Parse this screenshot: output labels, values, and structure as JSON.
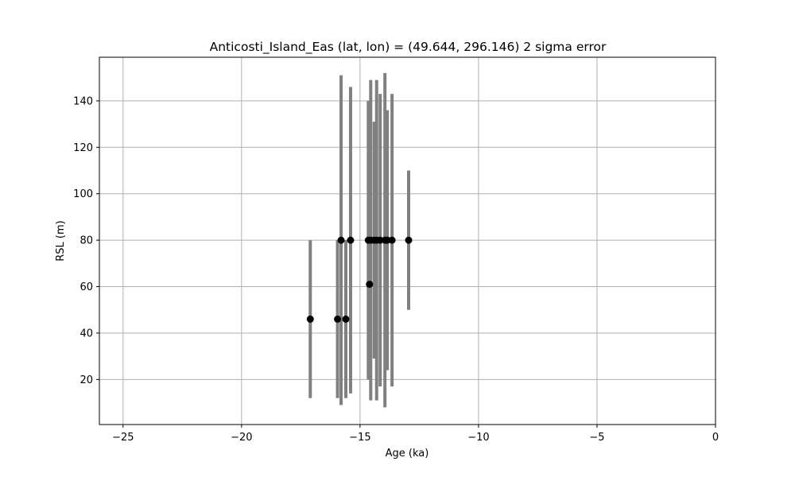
{
  "chart_data": {
    "type": "scatter",
    "title": "Anticosti_Island_Eas (lat, lon) = (49.644, 296.146)  2 sigma error",
    "xlabel": "Age (ka)",
    "ylabel": "RSL (m)",
    "xlim": [
      -26,
      0
    ],
    "ylim": [
      0.6,
      158.8
    ],
    "xticks": [
      -25,
      -20,
      -15,
      -10,
      -5,
      0
    ],
    "xtick_labels": [
      "−25",
      "−20",
      "−15",
      "−10",
      "−5",
      "0"
    ],
    "yticks": [
      20,
      40,
      60,
      80,
      100,
      120,
      140
    ],
    "ytick_labels": [
      "20",
      "40",
      "60",
      "80",
      "100",
      "120",
      "140"
    ],
    "grid": true,
    "colors": {
      "marker": "#000000",
      "errorbar": "#808080",
      "grid": "#b0b0b0"
    },
    "points": [
      {
        "x": -17.1,
        "y": 46,
        "ymin": 12,
        "ymax": 80
      },
      {
        "x": -15.95,
        "y": 46,
        "ymin": 12,
        "ymax": 80
      },
      {
        "x": -15.8,
        "y": 80,
        "ymin": 9,
        "ymax": 151
      },
      {
        "x": -15.6,
        "y": 46,
        "ymin": 12,
        "ymax": 80
      },
      {
        "x": -15.4,
        "y": 80,
        "ymin": 14,
        "ymax": 146
      },
      {
        "x": -14.65,
        "y": 80,
        "ymin": 20,
        "ymax": 140
      },
      {
        "x": -14.6,
        "y": 61,
        "ymin": 20,
        "ymax": 80
      },
      {
        "x": -14.55,
        "y": 80,
        "ymin": 11,
        "ymax": 149
      },
      {
        "x": -14.4,
        "y": 80,
        "ymin": 29,
        "ymax": 131
      },
      {
        "x": -14.3,
        "y": 80,
        "ymin": 11,
        "ymax": 149
      },
      {
        "x": -14.15,
        "y": 80,
        "ymin": 17,
        "ymax": 143
      },
      {
        "x": -13.95,
        "y": 80,
        "ymin": 8,
        "ymax": 152
      },
      {
        "x": -13.85,
        "y": 80,
        "ymin": 24,
        "ymax": 136
      },
      {
        "x": -13.65,
        "y": 80,
        "ymin": 17,
        "ymax": 143
      },
      {
        "x": -12.95,
        "y": 80,
        "ymin": 50,
        "ymax": 110
      }
    ]
  }
}
